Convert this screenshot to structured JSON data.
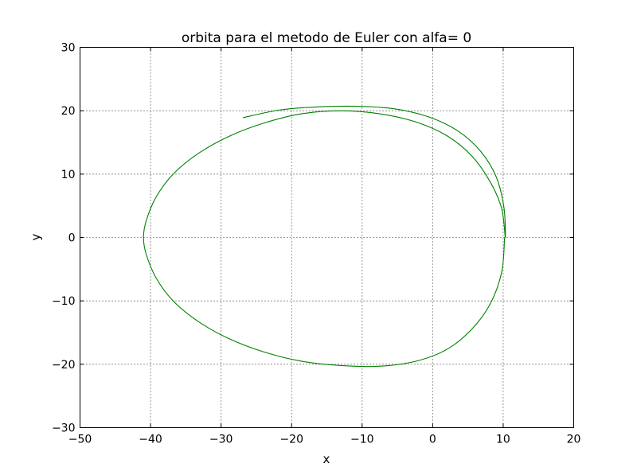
{
  "chart_data": {
    "type": "line",
    "title": "orbita para el metodo de Euler con alfa= 0",
    "xlabel": "x",
    "ylabel": "y",
    "xlim": [
      -50,
      20
    ],
    "ylim": [
      -30,
      30
    ],
    "xticks": [
      -50,
      -40,
      -30,
      -20,
      -10,
      0,
      10,
      20
    ],
    "yticks": [
      -30,
      -20,
      -10,
      0,
      10,
      20,
      30
    ],
    "xtick_labels": [
      "−50",
      "−40",
      "−30",
      "−20",
      "−10",
      "0",
      "10",
      "20"
    ],
    "ytick_labels": [
      "−30",
      "−20",
      "−10",
      "0",
      "10",
      "20",
      "30"
    ],
    "grid": true,
    "series": [
      {
        "color": "#008000",
        "x": [
          10.2,
          9.8,
          8.2,
          5.6,
          2.1,
          -2.3,
          -7.4,
          -13.0,
          -18.7,
          -24.1,
          -29.0,
          -33.3,
          -36.8,
          -39.2,
          -40.6,
          -41.0,
          -40.6,
          -39.2,
          -36.8,
          -33.3,
          -29.0,
          -24.1,
          -18.7,
          -13.0,
          -7.4,
          -2.3,
          2.1,
          5.6,
          8.2,
          9.8,
          10.3,
          10.1,
          9.0,
          6.8,
          3.6,
          -0.5,
          -5.4,
          -10.8,
          -16.4,
          -21.8,
          -26.9
        ],
        "y": [
          0,
          -5.4,
          -10.4,
          -14.4,
          -17.6,
          -19.5,
          -20.3,
          -20.2,
          -19.5,
          -18.0,
          -15.9,
          -13.2,
          -10.0,
          -6.4,
          -2.7,
          0,
          2.7,
          6.4,
          10.0,
          13.2,
          15.9,
          18.0,
          19.5,
          20.0,
          19.5,
          18.2,
          16.0,
          12.8,
          8.7,
          4.5,
          0,
          4.8,
          9.6,
          13.6,
          16.8,
          19.0,
          20.3,
          20.7,
          20.6,
          20.1,
          18.9
        ]
      }
    ]
  }
}
